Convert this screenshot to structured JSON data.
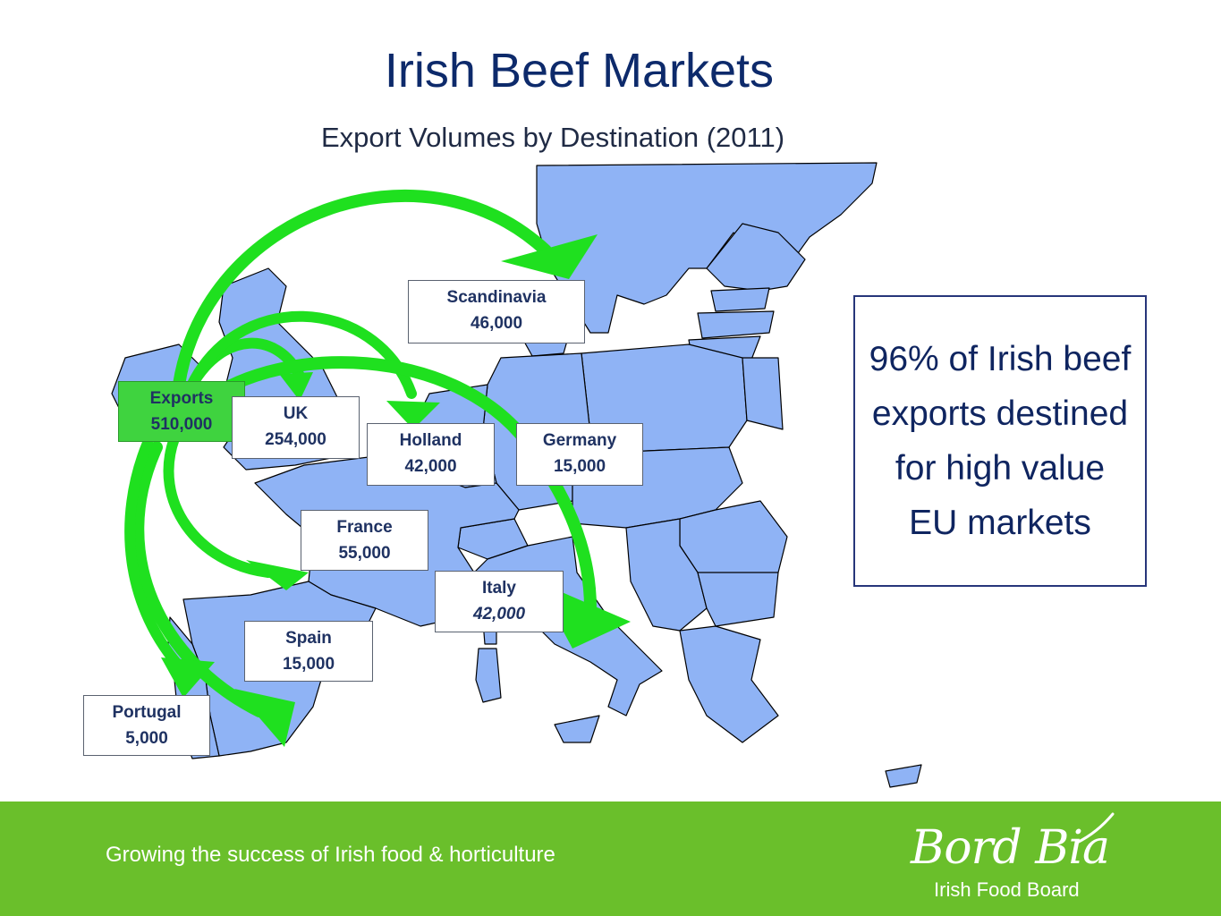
{
  "header": {
    "title": "Irish Beef Markets",
    "subtitle": "Export Volumes by Destination (2011)"
  },
  "origin": {
    "label": "Exports",
    "value": "510,000"
  },
  "destinations": [
    {
      "name": "Scandinavia",
      "value": "46,000"
    },
    {
      "name": "UK",
      "value": "254,000"
    },
    {
      "name": "Holland",
      "value": "42,000"
    },
    {
      "name": "Germany",
      "value": "15,000"
    },
    {
      "name": "France",
      "value": "55,000"
    },
    {
      "name": "Italy",
      "value": "42,000"
    },
    {
      "name": "Spain",
      "value": "15,000"
    },
    {
      "name": "Portugal",
      "value": "5,000"
    }
  ],
  "callout": "96% of Irish beef exports destined for high value EU markets",
  "footer": {
    "tagline": "Growing the success of Irish food & horticulture",
    "logo_main": "Bord Bia",
    "logo_sub": "Irish Food Board"
  },
  "colors": {
    "land": "#8fb3f5",
    "arrow": "#1fe01f",
    "footer": "#6abf2b",
    "title": "#0d2a6b"
  }
}
